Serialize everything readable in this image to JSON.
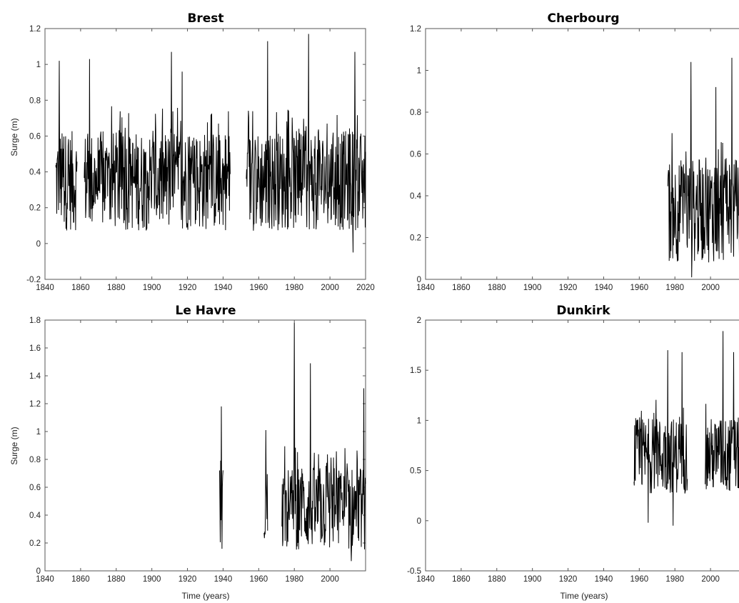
{
  "chart_data": [
    {
      "type": "line",
      "title": "Brest",
      "xlabel": "",
      "ylabel": "Surge (m)",
      "xlim": [
        1840,
        2020
      ],
      "ylim": [
        -0.2,
        1.2
      ],
      "xticks": [
        1840,
        1860,
        1880,
        1900,
        1920,
        1940,
        1960,
        1980,
        2000,
        2020
      ],
      "yticks": [
        -0.2,
        0,
        0.2,
        0.4,
        0.6,
        0.8,
        1,
        1.2
      ],
      "grid": false,
      "series": [
        {
          "segments": [
            [
              1846,
              1858
            ],
            [
              1862,
              1944
            ],
            [
              1953,
              2020
            ]
          ],
          "base": 0.35,
          "spread": 0.28,
          "min": -0.05,
          "max": 1.17,
          "peaks": [
            [
              1848,
              1.02
            ],
            [
              1865,
              1.03
            ],
            [
              1911,
              1.07
            ],
            [
              1917,
              0.96
            ],
            [
              1965,
              1.13
            ],
            [
              1988,
              1.17
            ],
            [
              2013,
              -0.05
            ],
            [
              2014,
              1.07
            ]
          ]
        }
      ]
    },
    {
      "type": "line",
      "title": "Cherbourg",
      "xlabel": "",
      "ylabel": "",
      "xlim": [
        1840,
        2020
      ],
      "ylim": [
        0,
        1.2
      ],
      "xticks": [
        1840,
        1860,
        1880,
        1900,
        1920,
        1940,
        1960,
        1980,
        2000
      ],
      "yticks": [
        0,
        0.2,
        0.4,
        0.6,
        0.8,
        1,
        1.2
      ],
      "grid": false,
      "series": [
        {
          "segments": [
            [
              1976,
              2020
            ]
          ],
          "base": 0.33,
          "spread": 0.25,
          "min": 0.01,
          "max": 1.06,
          "peaks": [
            [
              1989,
              1.04
            ],
            [
              1989.5,
              0.01
            ],
            [
              2003,
              0.92
            ],
            [
              2012,
              1.06
            ]
          ]
        }
      ]
    },
    {
      "type": "line",
      "title": "Le Havre",
      "xlabel": "Time (years)",
      "ylabel": "Surge (m)",
      "xlim": [
        1840,
        2020
      ],
      "ylim": [
        0,
        1.8
      ],
      "xticks": [
        1840,
        1860,
        1880,
        1900,
        1920,
        1940,
        1960,
        1980,
        2000
      ],
      "yticks": [
        0,
        0.2,
        0.4,
        0.6,
        0.8,
        1,
        1.2,
        1.4,
        1.6,
        1.8
      ],
      "grid": false,
      "series": [
        {
          "segments": [
            [
              1938,
              1940
            ],
            [
              1963,
              1965
            ],
            [
              1973,
              2020
            ]
          ],
          "base": 0.45,
          "spread": 0.3,
          "min": 0.07,
          "max": 1.78,
          "peaks": [
            [
              1939,
              1.18
            ],
            [
              1964,
              1.01
            ],
            [
              1980,
              1.78
            ],
            [
              1989,
              1.49
            ],
            [
              2012,
              0.07
            ],
            [
              2019,
              1.31
            ]
          ]
        }
      ]
    },
    {
      "type": "line",
      "title": "Dunkirk",
      "xlabel": "Time (years)",
      "ylabel": "",
      "xlim": [
        1840,
        2020
      ],
      "ylim": [
        -0.5,
        2
      ],
      "xticks": [
        1840,
        1860,
        1880,
        1900,
        1920,
        1940,
        1960,
        1980,
        2000
      ],
      "yticks": [
        -0.5,
        0,
        0.5,
        1,
        1.5,
        2
      ],
      "grid": false,
      "series": [
        {
          "segments": [
            [
              1957,
              1987
            ],
            [
              1997,
              2020
            ]
          ],
          "base": 0.65,
          "spread": 0.38,
          "min": -0.05,
          "max": 1.89,
          "peaks": [
            [
              1965,
              -0.02
            ],
            [
              1976,
              1.7
            ],
            [
              1979,
              -0.05
            ],
            [
              1984,
              1.68
            ],
            [
              2007,
              1.89
            ],
            [
              2013,
              1.68
            ]
          ]
        }
      ]
    }
  ]
}
